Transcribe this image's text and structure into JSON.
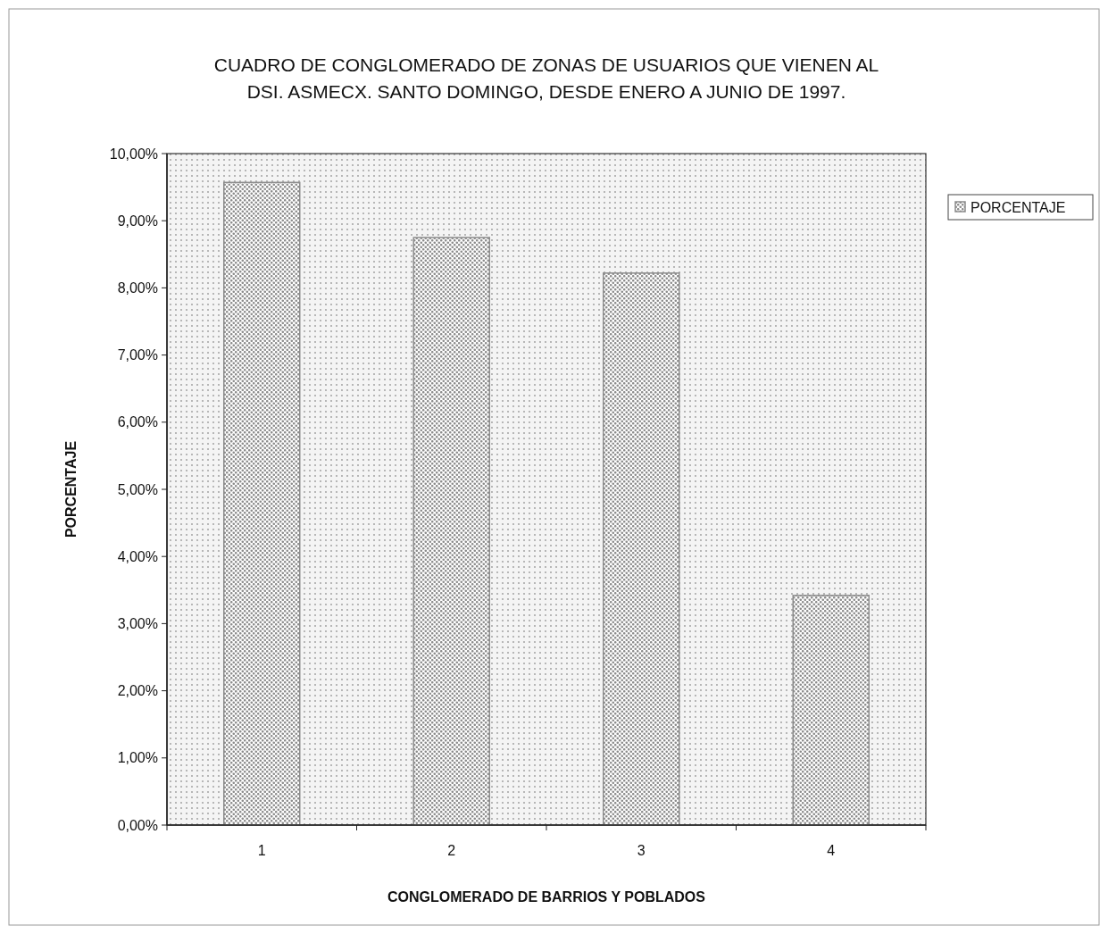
{
  "chart_data": {
    "type": "bar",
    "title": "CUADRO DE CONGLOMERADO DE ZONAS DE USUARIOS QUE VIENEN AL\nDSI. ASMECX. SANTO DOMINGO, DESDE ENERO A JUNIO DE 1997.",
    "xlabel": "CONGLOMERADO DE BARRIOS Y POBLADOS",
    "ylabel": "PORCENTAJE",
    "categories": [
      "1",
      "2",
      "3",
      "4"
    ],
    "series": [
      {
        "name": "PORCENTAJE",
        "color": "#8c8c8c",
        "values": [
          9.57,
          8.75,
          8.22,
          3.42
        ]
      }
    ],
    "ylim": [
      0,
      10
    ],
    "yticks": [
      {
        "value": 0,
        "label": "0,00%"
      },
      {
        "value": 1,
        "label": "1,00%"
      },
      {
        "value": 2,
        "label": "2,00%"
      },
      {
        "value": 3,
        "label": "3,00%"
      },
      {
        "value": 4,
        "label": "4,00%"
      },
      {
        "value": 5,
        "label": "5,00%"
      },
      {
        "value": 6,
        "label": "6,00%"
      },
      {
        "value": 7,
        "label": "7,00%"
      },
      {
        "value": 8,
        "label": "8,00%"
      },
      {
        "value": 9,
        "label": "9,00%"
      },
      {
        "value": 10,
        "label": "10,00%"
      }
    ],
    "legend": "right",
    "grid": false
  }
}
